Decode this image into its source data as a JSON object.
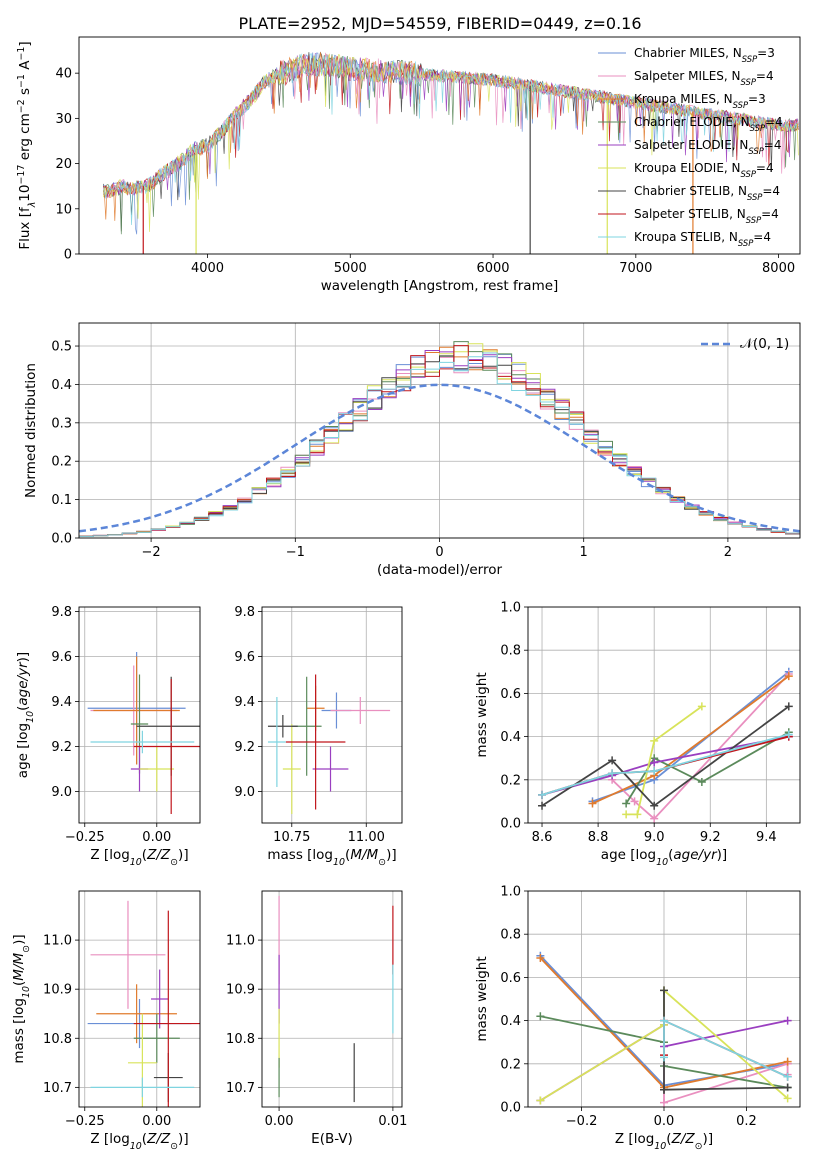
{
  "figure": {
    "title": "PLATE=2952, MJD=54559, FIBERID=0449, z=0.16"
  },
  "series_legend": [
    {
      "name": "Chabrier MILES, N_SSP=3",
      "base": "Chabrier MILES, N",
      "sub": "SSP",
      "tail": "=3",
      "color": "#6a8fd6"
    },
    {
      "name": "Salpeter MILES, N_SSP=4",
      "base": "Salpeter MILES, N",
      "sub": "SSP",
      "tail": "=4",
      "color": "#e98fbf"
    },
    {
      "name": "Kroupa MILES, N_SSP=3",
      "base": "Kroupa MILES, N",
      "sub": "SSP",
      "tail": "=3",
      "color": "#e07b2e"
    },
    {
      "name": "Chabrier ELODIE, N_SSP=4",
      "base": "Chabrier ELODIE, N",
      "sub": "SSP",
      "tail": "=4",
      "color": "#5b8a5b"
    },
    {
      "name": "Salpeter ELODIE, N_SSP=4",
      "base": "Salpeter ELODIE, N",
      "sub": "SSP",
      "tail": "=4",
      "color": "#9a3fc0"
    },
    {
      "name": "Kroupa ELODIE, N_SSP=4",
      "base": "Kroupa ELODIE, N",
      "sub": "SSP",
      "tail": "=4",
      "color": "#d8e35a"
    },
    {
      "name": "Chabrier STELIB, N_SSP=4",
      "base": "Chabrier STELIB, N",
      "sub": "SSP",
      "tail": "=4",
      "color": "#444444"
    },
    {
      "name": "Salpeter STELIB, N_SSP=4",
      "base": "Salpeter STELIB, N",
      "sub": "SSP",
      "tail": "=4",
      "color": "#c0161c"
    },
    {
      "name": "Kroupa STELIB, N_SSP=4",
      "base": "Kroupa STELIB, N",
      "sub": "SSP",
      "tail": "=4",
      "color": "#7fd4e0"
    }
  ],
  "chart_data": [
    {
      "id": "spectrum",
      "type": "line",
      "xlabel": "wavelength [Angstrom, rest frame]",
      "ylabel": "Flux [f_λ 10^-17 erg cm^-2 s^-1 A^-1]",
      "xlim": [
        3100,
        8150
      ],
      "ylim": [
        0,
        48
      ],
      "xticks": [
        4000,
        5000,
        6000,
        7000,
        8000
      ],
      "yticks": [
        0,
        10,
        20,
        30,
        40
      ],
      "grid": false,
      "legend": "top-right",
      "continuum": {
        "x": [
          3300,
          3400,
          3500,
          3600,
          3700,
          3800,
          3900,
          4000,
          4100,
          4200,
          4300,
          4400,
          4500,
          4600,
          4700,
          4800,
          4900,
          5000,
          5200,
          5400,
          5600,
          5800,
          6000,
          6200,
          6400,
          6600,
          6800,
          7000,
          7200,
          7400,
          7600,
          7800,
          8000
        ],
        "y": [
          14,
          15,
          14.5,
          15.5,
          18,
          20,
          23,
          24,
          27,
          31,
          34,
          38,
          40,
          41,
          42,
          42,
          41.5,
          41,
          40.5,
          40,
          39.5,
          39,
          38.5,
          37.5,
          36.5,
          35.5,
          34.5,
          33.5,
          32.5,
          31.5,
          30.5,
          29.5,
          28.5
        ]
      },
      "dropouts": [
        {
          "series": "Salpeter STELIB, N_SSP=4",
          "x": 3550,
          "y_low": 0
        },
        {
          "series": "Kroupa ELODIE, N_SSP=4",
          "x": 3920,
          "y_low": 0
        },
        {
          "series": "Chabrier STELIB, N_SSP=4",
          "x": 6260,
          "y_low": 0
        },
        {
          "series": "Kroupa ELODIE, N_SSP=4",
          "x": 6800,
          "y_low": 0
        },
        {
          "series": "Kroupa MILES, N_SSP=3",
          "x": 7400,
          "y_low": 0
        }
      ]
    },
    {
      "id": "residual-histogram",
      "type": "bar",
      "xlabel": "(data-model)/error",
      "ylabel": "Normed distribution",
      "xlim": [
        -2.5,
        2.5
      ],
      "ylim": [
        0,
        0.56
      ],
      "xticks": [
        -2,
        -1,
        0,
        1,
        2
      ],
      "yticks": [
        0.0,
        0.1,
        0.2,
        0.3,
        0.4,
        0.5
      ],
      "grid": true,
      "legend": "top-right",
      "reference_curve": {
        "name": "N(0,1)",
        "label": "𝒩(0, 1)",
        "mean": 0,
        "sigma": 1,
        "color": "#5c86d8"
      },
      "bin_width": 0.1,
      "approx_mean": 0.15,
      "approx_sigma": 0.85
    },
    {
      "id": "age-vs-Z",
      "type": "scatter",
      "xlabel": "Z [log10(Z/Z☉)]",
      "ylabel": "age [log10(age/yr)]",
      "xlim": [
        -0.27,
        0.15
      ],
      "ylim": [
        8.86,
        9.82
      ],
      "xticks": [
        -0.25,
        0.0
      ],
      "yticks": [
        9.0,
        9.2,
        9.4,
        9.6,
        9.8
      ],
      "grid": true,
      "points": [
        {
          "series": "Chabrier MILES, N_SSP=3",
          "x": -0.07,
          "y": 9.37,
          "xerr": 0.17,
          "yerr": 0.25
        },
        {
          "series": "Salpeter MILES, N_SSP=4",
          "x": -0.08,
          "y": 9.36,
          "xerr": 0.15,
          "yerr": 0.2
        },
        {
          "series": "Kroupa MILES, N_SSP=3",
          "x": -0.07,
          "y": 9.36,
          "xerr": 0.15,
          "yerr": 0.24
        },
        {
          "series": "Chabrier ELODIE, N_SSP=4",
          "x": -0.06,
          "y": 9.3,
          "xerr": 0.03,
          "yerr": 0.22
        },
        {
          "series": "Salpeter ELODIE, N_SSP=4",
          "x": -0.06,
          "y": 9.1,
          "xerr": 0.03,
          "yerr": 0.1
        },
        {
          "series": "Kroupa ELODIE, N_SSP=4",
          "x": 0.0,
          "y": 9.1,
          "xerr": 0.06,
          "yerr": 0.1
        },
        {
          "series": "Chabrier STELIB, N_SSP=4",
          "x": 0.05,
          "y": 9.29,
          "xerr": 0.12,
          "yerr": 0.22
        },
        {
          "series": "Salpeter STELIB, N_SSP=4",
          "x": 0.05,
          "y": 9.2,
          "xerr": 0.13,
          "yerr": 0.3
        },
        {
          "series": "Kroupa STELIB, N_SSP=4",
          "x": -0.05,
          "y": 9.22,
          "xerr": 0.18,
          "yerr": 0.05
        }
      ]
    },
    {
      "id": "age-vs-mass",
      "type": "scatter",
      "xlabel": "mass [log10(M/M☉)]",
      "ylabel": "",
      "xlim": [
        10.65,
        11.12
      ],
      "ylim": [
        8.86,
        9.82
      ],
      "xticks": [
        10.75,
        11.0
      ],
      "yticks": [
        9.0,
        9.2,
        9.4,
        9.6,
        9.8
      ],
      "grid": true,
      "points": [
        {
          "series": "Chabrier MILES, N_SSP=3",
          "x": 10.9,
          "y": 9.36,
          "xerr": 0.05,
          "yerr": 0.08
        },
        {
          "series": "Salpeter MILES, N_SSP=4",
          "x": 10.98,
          "y": 9.36,
          "xerr": 0.1,
          "yerr": 0.06
        },
        {
          "series": "Kroupa MILES, N_SSP=3",
          "x": 10.83,
          "y": 9.37,
          "xerr": 0.03,
          "yerr": 0.1
        },
        {
          "series": "Chabrier ELODIE, N_SSP=4",
          "x": 10.8,
          "y": 9.29,
          "xerr": 0.05,
          "yerr": 0.22
        },
        {
          "series": "Salpeter ELODIE, N_SSP=4",
          "x": 10.88,
          "y": 9.1,
          "xerr": 0.06,
          "yerr": 0.1
        },
        {
          "series": "Kroupa ELODIE, N_SSP=4",
          "x": 10.75,
          "y": 9.1,
          "xerr": 0.03,
          "yerr": 0.2
        },
        {
          "series": "Chabrier STELIB, N_SSP=4",
          "x": 10.72,
          "y": 9.29,
          "xerr": 0.05,
          "yerr": 0.05
        },
        {
          "series": "Salpeter STELIB, N_SSP=4",
          "x": 10.83,
          "y": 9.22,
          "xerr": 0.1,
          "yerr": 0.3
        },
        {
          "series": "Kroupa STELIB, N_SSP=4",
          "x": 10.7,
          "y": 9.22,
          "xerr": 0.03,
          "yerr": 0.2
        }
      ]
    },
    {
      "id": "weight-vs-age",
      "type": "line",
      "xlabel": "age [log10(age/yr)]",
      "ylabel": "mass weight",
      "xlim": [
        8.55,
        9.52
      ],
      "ylim": [
        0,
        1
      ],
      "xticks": [
        8.6,
        8.8,
        9.0,
        9.2,
        9.4
      ],
      "yticks": [
        0.0,
        0.2,
        0.4,
        0.6,
        0.8,
        1.0
      ],
      "grid": true,
      "series": [
        {
          "name": "Chabrier MILES, N_SSP=3",
          "x": [
            8.78,
            9.0,
            9.48
          ],
          "y": [
            0.1,
            0.2,
            0.7
          ]
        },
        {
          "name": "Salpeter MILES, N_SSP=4",
          "x": [
            8.85,
            8.93,
            9.0,
            9.48
          ],
          "y": [
            0.2,
            0.1,
            0.02,
            0.69
          ]
        },
        {
          "name": "Kroupa MILES, N_SSP=3",
          "x": [
            8.78,
            9.0,
            9.48
          ],
          "y": [
            0.09,
            0.22,
            0.68
          ]
        },
        {
          "name": "Chabrier ELODIE, N_SSP=4",
          "x": [
            8.9,
            9.0,
            9.17,
            9.48
          ],
          "y": [
            0.09,
            0.3,
            0.19,
            0.42
          ]
        },
        {
          "name": "Salpeter ELODIE, N_SSP=4",
          "x": [
            8.6,
            8.85,
            9.0,
            9.48
          ],
          "y": [
            0.13,
            0.22,
            0.28,
            0.4
          ]
        },
        {
          "name": "Kroupa ELODIE, N_SSP=4",
          "x": [
            8.9,
            8.94,
            9.0,
            9.17
          ],
          "y": [
            0.04,
            0.04,
            0.38,
            0.54
          ]
        },
        {
          "name": "Chabrier STELIB, N_SSP=4",
          "x": [
            8.6,
            8.85,
            9.0,
            9.48
          ],
          "y": [
            0.08,
            0.29,
            0.08,
            0.54
          ]
        },
        {
          "name": "Salpeter STELIB, N_SSP=4",
          "x": [
            8.6,
            8.85,
            9.0,
            9.48
          ],
          "y": [
            0.13,
            0.23,
            0.24,
            0.4
          ]
        },
        {
          "name": "Kroupa STELIB, N_SSP=4",
          "x": [
            8.6,
            8.85,
            9.0,
            9.48
          ],
          "y": [
            0.13,
            0.23,
            0.24,
            0.41
          ]
        }
      ]
    },
    {
      "id": "mass-vs-Z",
      "type": "scatter",
      "xlabel": "Z [log10(Z/Z☉)]",
      "ylabel": "mass [log10(M/M☉)]",
      "xlim": [
        -0.27,
        0.15
      ],
      "ylim": [
        10.66,
        11.1
      ],
      "xticks": [
        -0.25,
        0.0
      ],
      "yticks": [
        10.7,
        10.8,
        10.9,
        11.0
      ],
      "grid": true,
      "points": [
        {
          "series": "Chabrier MILES, N_SSP=3",
          "x": -0.06,
          "y": 10.83,
          "xerr": 0.18,
          "yerr": 0.05
        },
        {
          "series": "Salpeter MILES, N_SSP=4",
          "x": -0.1,
          "y": 10.97,
          "xerr": 0.13,
          "yerr": 0.11
        },
        {
          "series": "Kroupa MILES, N_SSP=3",
          "x": -0.07,
          "y": 10.85,
          "xerr": 0.14,
          "yerr": 0.06
        },
        {
          "series": "Chabrier ELODIE, N_SSP=4",
          "x": 0.0,
          "y": 10.8,
          "xerr": 0.08,
          "yerr": 0.05
        },
        {
          "series": "Salpeter ELODIE, N_SSP=4",
          "x": 0.01,
          "y": 10.88,
          "xerr": 0.03,
          "yerr": 0.06
        },
        {
          "series": "Kroupa ELODIE, N_SSP=4",
          "x": -0.05,
          "y": 10.75,
          "xerr": 0.05,
          "yerr": 0.1
        },
        {
          "series": "Chabrier STELIB, N_SSP=4",
          "x": 0.04,
          "y": 10.72,
          "xerr": 0.05,
          "yerr": 0.05
        },
        {
          "series": "Salpeter STELIB, N_SSP=4",
          "x": 0.04,
          "y": 10.83,
          "xerr": 0.12,
          "yerr": 0.23
        },
        {
          "series": "Kroupa STELIB, N_SSP=4",
          "x": -0.05,
          "y": 10.7,
          "xerr": 0.18,
          "yerr": 0.02
        }
      ]
    },
    {
      "id": "mass-vs-EBV",
      "type": "scatter",
      "xlabel": "E(B-V)",
      "ylabel": "",
      "xlim": [
        -0.0015,
        0.0108
      ],
      "ylim": [
        10.66,
        11.1
      ],
      "xticks": [
        0.0,
        0.01
      ],
      "yticks": [
        10.7,
        10.8,
        10.9,
        11.0
      ],
      "grid": true,
      "points": [
        {
          "series": "Salpeter MILES, N_SSP=4",
          "x": 0.0,
          "y": 11.0,
          "xerr": 0,
          "yerr": 0.09
        },
        {
          "series": "Salpeter ELODIE, N_SSP=4",
          "x": 0.0,
          "y": 10.9,
          "xerr": 0,
          "yerr": 0.07
        },
        {
          "series": "Kroupa ELODIE, N_SSP=4",
          "x": 0.0,
          "y": 10.8,
          "xerr": 0,
          "yerr": 0.06
        },
        {
          "series": "Chabrier ELODIE, N_SSP=4",
          "x": 0.0,
          "y": 10.72,
          "xerr": 0,
          "yerr": 0.04
        },
        {
          "series": "Chabrier STELIB, N_SSP=4",
          "x": 0.0066,
          "y": 10.73,
          "xerr": 0,
          "yerr": 0.06
        },
        {
          "series": "Salpeter STELIB, N_SSP=4",
          "x": 0.01,
          "y": 11.0,
          "xerr": 0,
          "yerr": 0.07
        },
        {
          "series": "Kroupa STELIB, N_SSP=4",
          "x": 0.01,
          "y": 10.88,
          "xerr": 0,
          "yerr": 0.07
        }
      ]
    },
    {
      "id": "weight-vs-Z",
      "type": "line",
      "xlabel": "Z [log10(Z/Z☉)]",
      "ylabel": "mass weight",
      "xlim": [
        -0.33,
        0.33
      ],
      "ylim": [
        0,
        1
      ],
      "xticks": [
        -0.2,
        0.0,
        0.2
      ],
      "yticks": [
        0.0,
        0.2,
        0.4,
        0.6,
        0.8,
        1.0
      ],
      "grid": true,
      "series": [
        {
          "name": "Chabrier MILES, N_SSP=3",
          "x": [
            -0.3,
            0.0,
            0.3
          ],
          "y": [
            0.7,
            0.1,
            0.2
          ]
        },
        {
          "name": "Salpeter MILES, N_SSP=4",
          "x": [
            0.0,
            0.0,
            0.3,
            0.3
          ],
          "y": [
            0.4,
            0.02,
            0.2,
            0.15
          ]
        },
        {
          "name": "Kroupa MILES, N_SSP=3",
          "x": [
            -0.3,
            0.0,
            0.3
          ],
          "y": [
            0.69,
            0.09,
            0.21
          ]
        },
        {
          "name": "Chabrier ELODIE, N_SSP=4",
          "x": [
            -0.3,
            0.0,
            0.0,
            0.3
          ],
          "y": [
            0.42,
            0.3,
            0.19,
            0.09
          ]
        },
        {
          "name": "Salpeter ELODIE, N_SSP=4",
          "x": [
            -0.3,
            0.0,
            0.0,
            0.3
          ],
          "y": [
            0.03,
            0.38,
            0.28,
            0.4
          ]
        },
        {
          "name": "Kroupa ELODIE, N_SSP=4",
          "x": [
            -0.3,
            0.0,
            0.0,
            0.3
          ],
          "y": [
            0.03,
            0.38,
            0.54,
            0.04
          ]
        },
        {
          "name": "Chabrier STELIB, N_SSP=4",
          "x": [
            0.0,
            0.0,
            0.0,
            0.3
          ],
          "y": [
            0.54,
            0.08,
            0.08,
            0.09
          ]
        },
        {
          "name": "Salpeter STELIB, N_SSP=4",
          "x": [
            0.0,
            0.0,
            0.3
          ],
          "y": [
            0.24,
            0.4,
            0.14
          ]
        },
        {
          "name": "Kroupa STELIB, N_SSP=4",
          "x": [
            0.0,
            0.0,
            0.3
          ],
          "y": [
            0.23,
            0.4,
            0.14
          ]
        }
      ]
    }
  ]
}
